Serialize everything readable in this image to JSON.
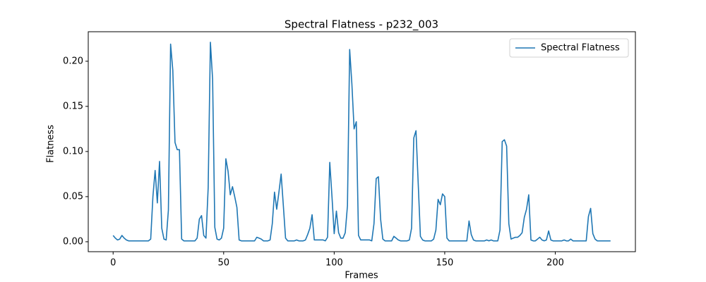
{
  "chart_data": {
    "type": "line",
    "title": "Spectral Flatness - p232_003",
    "x_label": "Frames",
    "y_label": "Flatness",
    "x": [
      0,
      1,
      2,
      3,
      4,
      5,
      6,
      7,
      8,
      9,
      10,
      11,
      12,
      13,
      14,
      15,
      16,
      17,
      18,
      19,
      20,
      21,
      22,
      23,
      24,
      25,
      26,
      27,
      28,
      29,
      30,
      31,
      32,
      33,
      34,
      35,
      36,
      37,
      38,
      39,
      40,
      41,
      42,
      43,
      44,
      45,
      46,
      47,
      48,
      49,
      50,
      51,
      52,
      53,
      54,
      55,
      56,
      57,
      58,
      59,
      60,
      61,
      62,
      63,
      64,
      65,
      66,
      67,
      68,
      69,
      70,
      71,
      72,
      73,
      74,
      75,
      76,
      77,
      78,
      79,
      80,
      81,
      82,
      83,
      84,
      85,
      86,
      87,
      88,
      89,
      90,
      91,
      92,
      93,
      94,
      95,
      96,
      97,
      98,
      99,
      100,
      101,
      102,
      103,
      104,
      105,
      106,
      107,
      108,
      109,
      110,
      111,
      112,
      113,
      114,
      115,
      116,
      117,
      118,
      119,
      120,
      121,
      122,
      123,
      124,
      125,
      126,
      127,
      128,
      129,
      130,
      131,
      132,
      133,
      134,
      135,
      136,
      137,
      138,
      139,
      140,
      141,
      142,
      143,
      144,
      145,
      146,
      147,
      148,
      149,
      150,
      151,
      152,
      153,
      154,
      155,
      156,
      157,
      158,
      159,
      160,
      161,
      162,
      163,
      164,
      165,
      166,
      167,
      168,
      169,
      170,
      171,
      172,
      173,
      174,
      175,
      176,
      177,
      178,
      179,
      180,
      181,
      182,
      183,
      184,
      185,
      186,
      187,
      188,
      189,
      190,
      191,
      192,
      193,
      194,
      195,
      196,
      197,
      198,
      199,
      200,
      201,
      202,
      203,
      204,
      205,
      206,
      207,
      208,
      209,
      210,
      211,
      212,
      213,
      214,
      215,
      216,
      217,
      218,
      219,
      220,
      221,
      222,
      223,
      224,
      225
    ],
    "series": [
      {
        "name": "Spectral Flatness",
        "color": "#1f77b4",
        "values": [
          0.007,
          0.004,
          0.002,
          0.003,
          0.007,
          0.004,
          0.002,
          0.001,
          0.001,
          0.001,
          0.001,
          0.001,
          0.001,
          0.001,
          0.001,
          0.001,
          0.001,
          0.003,
          0.05,
          0.079,
          0.043,
          0.089,
          0.015,
          0.003,
          0.002,
          0.035,
          0.219,
          0.19,
          0.11,
          0.102,
          0.102,
          0.003,
          0.001,
          0.001,
          0.001,
          0.001,
          0.001,
          0.001,
          0.004,
          0.025,
          0.029,
          0.007,
          0.004,
          0.06,
          0.221,
          0.18,
          0.016,
          0.003,
          0.002,
          0.004,
          0.015,
          0.092,
          0.078,
          0.052,
          0.061,
          0.05,
          0.038,
          0.002,
          0.001,
          0.001,
          0.001,
          0.001,
          0.001,
          0.001,
          0.001,
          0.005,
          0.004,
          0.003,
          0.001,
          0.001,
          0.001,
          0.002,
          0.02,
          0.055,
          0.036,
          0.055,
          0.075,
          0.04,
          0.004,
          0.001,
          0.001,
          0.001,
          0.001,
          0.002,
          0.001,
          0.001,
          0.001,
          0.002,
          0.008,
          0.015,
          0.03,
          0.002,
          0.002,
          0.002,
          0.002,
          0.002,
          0.001,
          0.005,
          0.088,
          0.05,
          0.009,
          0.034,
          0.01,
          0.004,
          0.004,
          0.01,
          0.04,
          0.213,
          0.175,
          0.125,
          0.133,
          0.007,
          0.002,
          0.002,
          0.002,
          0.002,
          0.002,
          0.001,
          0.02,
          0.07,
          0.072,
          0.025,
          0.003,
          0.001,
          0.001,
          0.001,
          0.001,
          0.006,
          0.004,
          0.002,
          0.001,
          0.001,
          0.001,
          0.001,
          0.002,
          0.015,
          0.115,
          0.123,
          0.065,
          0.006,
          0.002,
          0.001,
          0.001,
          0.001,
          0.001,
          0.003,
          0.013,
          0.047,
          0.041,
          0.053,
          0.05,
          0.004,
          0.001,
          0.001,
          0.001,
          0.001,
          0.001,
          0.001,
          0.001,
          0.001,
          0.001,
          0.023,
          0.008,
          0.002,
          0.001,
          0.001,
          0.001,
          0.001,
          0.001,
          0.002,
          0.001,
          0.002,
          0.001,
          0.001,
          0.001,
          0.013,
          0.111,
          0.113,
          0.106,
          0.02,
          0.003,
          0.004,
          0.005,
          0.005,
          0.007,
          0.01,
          0.027,
          0.036,
          0.052,
          0.002,
          0.001,
          0.001,
          0.003,
          0.005,
          0.002,
          0.001,
          0.002,
          0.012,
          0.002,
          0.001,
          0.001,
          0.001,
          0.001,
          0.001,
          0.002,
          0.001,
          0.001,
          0.003,
          0.001,
          0.001,
          0.001,
          0.001,
          0.001,
          0.001,
          0.001,
          0.028,
          0.037,
          0.009,
          0.003,
          0.001,
          0.001,
          0.001,
          0.001,
          0.001,
          0.001,
          0.001
        ]
      }
    ],
    "xlim": [
      -11.25,
      236.25
    ],
    "xticks": [
      0,
      50,
      100,
      150,
      200
    ],
    "ylim": [
      -0.011,
      0.2327
    ],
    "yticks": [
      {
        "value": 0,
        "label": "0.00"
      },
      {
        "value": 0.05,
        "label": "0.05"
      },
      {
        "value": 0.1,
        "label": "0.10"
      },
      {
        "value": 0.15,
        "label": "0.15"
      },
      {
        "value": 0.2,
        "label": "0.20"
      }
    ],
    "legend": "upper right",
    "grid": false
  }
}
